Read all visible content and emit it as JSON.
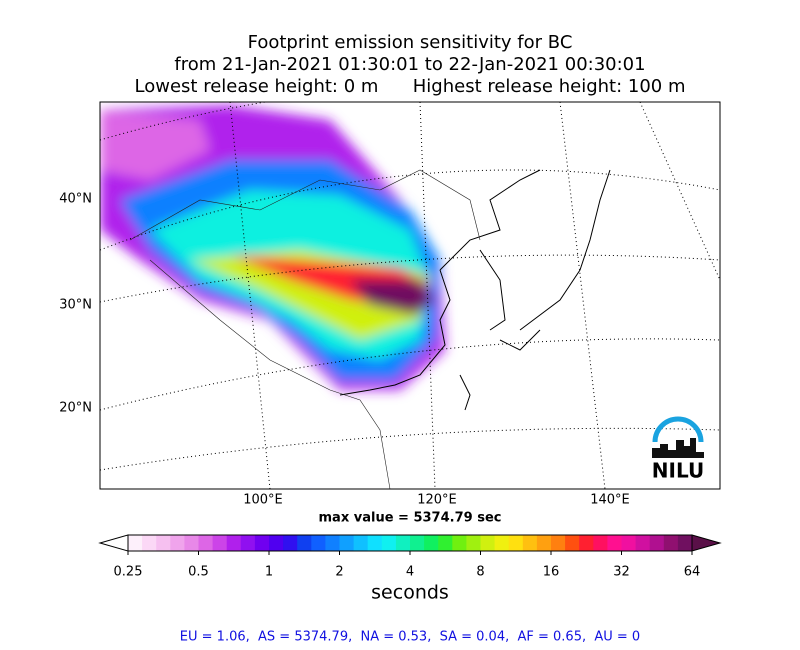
{
  "title": {
    "lines": [
      "Footprint emission sensitivity for BC",
      "from 21-Jan-2021 01:30:01 to 22-Jan-2021 00:30:01",
      "Lowest release height: 0 m      Highest release height: 100 m"
    ]
  },
  "map": {
    "lat_labels": [
      "40°N",
      "30°N",
      "20°N"
    ],
    "lon_labels": [
      "100°E",
      "120°E",
      "140°E"
    ],
    "max_value": "max value = 5374.79 sec",
    "logo": "NILU"
  },
  "colorbar": {
    "range": [
      0.25,
      64
    ],
    "log_scale": true,
    "ticks": [
      0.25,
      0.5,
      1,
      2,
      4,
      8,
      16,
      32,
      64
    ],
    "label": "seconds",
    "under_color": "#ffffff",
    "over_color": "#5a1048",
    "colors": [
      "#fdf0fb",
      "#fbd8f6",
      "#f6c0f0",
      "#f0a4ec",
      "#e888e8",
      "#dd66e6",
      "#cc44e8",
      "#b020ec",
      "#9010f0",
      "#7000f0",
      "#5000f0",
      "#3010f0",
      "#1040f0",
      "#1060ff",
      "#1080ff",
      "#10a0ff",
      "#10c0ff",
      "#10e0ff",
      "#10f0f0",
      "#10f0c0",
      "#10f090",
      "#10f060",
      "#30f030",
      "#70f010",
      "#a0f010",
      "#d0f010",
      "#f0f010",
      "#ffe010",
      "#ffc010",
      "#ffa010",
      "#ff8010",
      "#ff5010",
      "#ff2030",
      "#ff1060",
      "#ff1090",
      "#f010a0",
      "#d010a0",
      "#b01090",
      "#901070",
      "#701060"
    ]
  },
  "footer": {
    "stats": "EU = 1.06,  AS = 5374.79,  NA = 0.53,  SA = 0.04,  AF = 0.65,  AU = 0"
  }
}
